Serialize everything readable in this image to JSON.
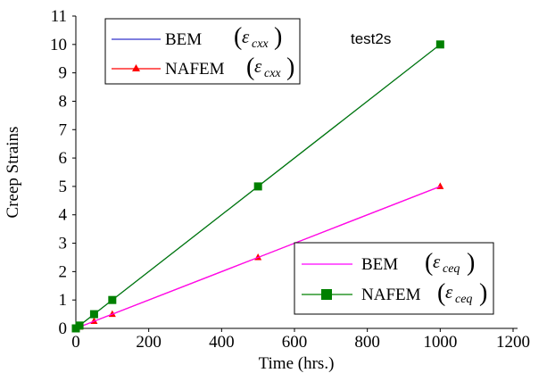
{
  "chart_data": {
    "type": "line",
    "x": [
      0,
      10,
      50,
      100,
      500,
      1000
    ],
    "series": [
      {
        "name": "BEM",
        "strain": "cxx",
        "values": [
          0,
          0.1,
          0.5,
          1,
          5,
          10
        ],
        "color": "#3333cc",
        "marker": "none"
      },
      {
        "name": "NAFEM",
        "strain": "cxx",
        "values": [
          0,
          0.05,
          0.25,
          0.5,
          2.5,
          5
        ],
        "color": "#ff0000",
        "marker": "triangle"
      },
      {
        "name": "BEM",
        "strain": "ceq",
        "values": [
          0,
          0.05,
          0.25,
          0.5,
          2.5,
          5
        ],
        "color": "#ff00ff",
        "marker": "none"
      },
      {
        "name": "NAFEM",
        "strain": "ceq",
        "values": [
          0,
          0.1,
          0.5,
          1,
          5,
          10
        ],
        "color": "#008000",
        "marker": "square"
      }
    ],
    "xlabel": "Time (hrs.)",
    "ylabel": "Creep Strains",
    "xlim": [
      0,
      1200
    ],
    "ylim": [
      0,
      11
    ],
    "xticks": [
      "0",
      "200",
      "400",
      "600",
      "800",
      "1000",
      "1200"
    ],
    "yticks": [
      "0",
      "1",
      "2",
      "3",
      "4",
      "5",
      "6",
      "7",
      "8",
      "9",
      "10",
      "11"
    ],
    "annotation": "test2s",
    "grid": false,
    "legends": [
      {
        "placement": "top-left",
        "entries": [
          0,
          1
        ]
      },
      {
        "placement": "bottom-right",
        "entries": [
          2,
          3
        ]
      }
    ]
  },
  "legend_symbol": {
    "epsilon": "ε"
  }
}
